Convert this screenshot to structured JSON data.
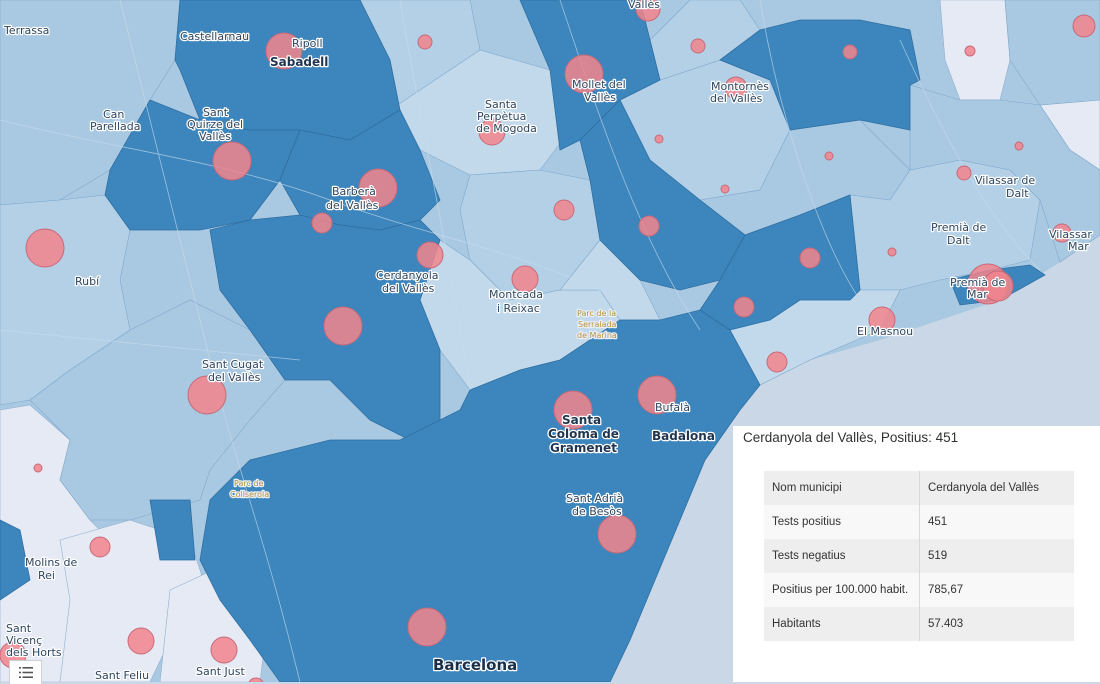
{
  "map": {
    "colors": {
      "sea": "#c9d7e6",
      "land_light": "#e6eaf5",
      "choropleth_low": "#a9c9e2",
      "choropleth_mid": "#8db6d9",
      "choropleth_high": "#4a93c6",
      "choropleth_top": "#3c86bd",
      "circle": "#f2848c",
      "circle_stroke": "#c86a78"
    },
    "labels": [
      {
        "id": "terrassa",
        "text": "Terrassa"
      },
      {
        "id": "castellarnau",
        "text": "Castellarnau"
      },
      {
        "id": "ripoll",
        "text": "Ripoll"
      },
      {
        "id": "sabadell",
        "text": "Sabadell"
      },
      {
        "id": "valles-top",
        "text": "Vallès"
      },
      {
        "id": "mollet-1",
        "text": "Mollet del"
      },
      {
        "id": "mollet-2",
        "text": "Vallès"
      },
      {
        "id": "montornes-1",
        "text": "Montornès"
      },
      {
        "id": "montornes-2",
        "text": "del Vallès"
      },
      {
        "id": "can-parellada-1",
        "text": "Can"
      },
      {
        "id": "can-parellada-2",
        "text": "Parellada"
      },
      {
        "id": "sant-quirze-1",
        "text": "Sant"
      },
      {
        "id": "sant-quirze-2",
        "text": "Quirze del"
      },
      {
        "id": "sant-quirze-3",
        "text": "Vallès"
      },
      {
        "id": "santa-perpetua-1",
        "text": "Santa"
      },
      {
        "id": "santa-perpetua-2",
        "text": "Perpètua"
      },
      {
        "id": "santa-perpetua-3",
        "text": "de Mogoda"
      },
      {
        "id": "barbera-1",
        "text": "Barberà"
      },
      {
        "id": "barbera-2",
        "text": "del Vallès"
      },
      {
        "id": "vilassar-dalt-1",
        "text": "Vilassar de"
      },
      {
        "id": "vilassar-dalt-2",
        "text": "Dalt"
      },
      {
        "id": "rubi",
        "text": "Rubí"
      },
      {
        "id": "cerdanyola-1",
        "text": "Cerdanyola"
      },
      {
        "id": "cerdanyola-2",
        "text": "del Vallès"
      },
      {
        "id": "montcada-1",
        "text": "Montcada"
      },
      {
        "id": "montcada-2",
        "text": "i Reixac"
      },
      {
        "id": "premia-dalt-1",
        "text": "Premià de"
      },
      {
        "id": "premia-dalt-2",
        "text": "Dalt"
      },
      {
        "id": "vilassar-mar-1",
        "text": "Vilassar"
      },
      {
        "id": "vilassar-mar-2",
        "text": "Mar"
      },
      {
        "id": "premia-mar-1",
        "text": "Premià de"
      },
      {
        "id": "premia-mar-2",
        "text": "Mar"
      },
      {
        "id": "parc-serralada-1",
        "text": "Parc de la"
      },
      {
        "id": "parc-serralada-2",
        "text": "Serralada"
      },
      {
        "id": "parc-serralada-3",
        "text": "de Marina"
      },
      {
        "id": "el-masnou",
        "text": "El Masnou"
      },
      {
        "id": "sant-cugat-1",
        "text": "Sant Cugat"
      },
      {
        "id": "sant-cugat-2",
        "text": "del Vallès"
      },
      {
        "id": "santa-coloma-1",
        "text": "Santa"
      },
      {
        "id": "santa-coloma-2",
        "text": "Coloma de"
      },
      {
        "id": "santa-coloma-3",
        "text": "Gramenet"
      },
      {
        "id": "bufala",
        "text": "Bufalà"
      },
      {
        "id": "badalona",
        "text": "Badalona"
      },
      {
        "id": "parc-collserola-1",
        "text": "Parc de"
      },
      {
        "id": "parc-collserola-2",
        "text": "Collserola"
      },
      {
        "id": "sant-adria-1",
        "text": "Sant Adrià"
      },
      {
        "id": "sant-adria-2",
        "text": "de Besòs"
      },
      {
        "id": "molins-1",
        "text": "Molins de"
      },
      {
        "id": "molins-2",
        "text": "Rei"
      },
      {
        "id": "sant-vicenc-1",
        "text": "Sant"
      },
      {
        "id": "sant-vicenc-2",
        "text": "Vicenç"
      },
      {
        "id": "sant-vicenc-3",
        "text": "dels Horts"
      },
      {
        "id": "sant-just",
        "text": "Sant Just"
      },
      {
        "id": "sant-feliu",
        "text": "Sant Feliu"
      },
      {
        "id": "barcelona",
        "text": "Barcelona"
      }
    ]
  },
  "popup": {
    "title": "Cerdanyola del Vallès, Positius: 451",
    "rows": [
      {
        "key": "Nom municipi",
        "value": "Cerdanyola del Vallès"
      },
      {
        "key": "Tests positius",
        "value": "451"
      },
      {
        "key": "Tests negatius",
        "value": "519"
      },
      {
        "key": "Positius per 100.000 habit.",
        "value": "785,67"
      },
      {
        "key": "Habitants",
        "value": "57.403"
      }
    ]
  },
  "legend_button": {
    "icon": "list-icon"
  }
}
